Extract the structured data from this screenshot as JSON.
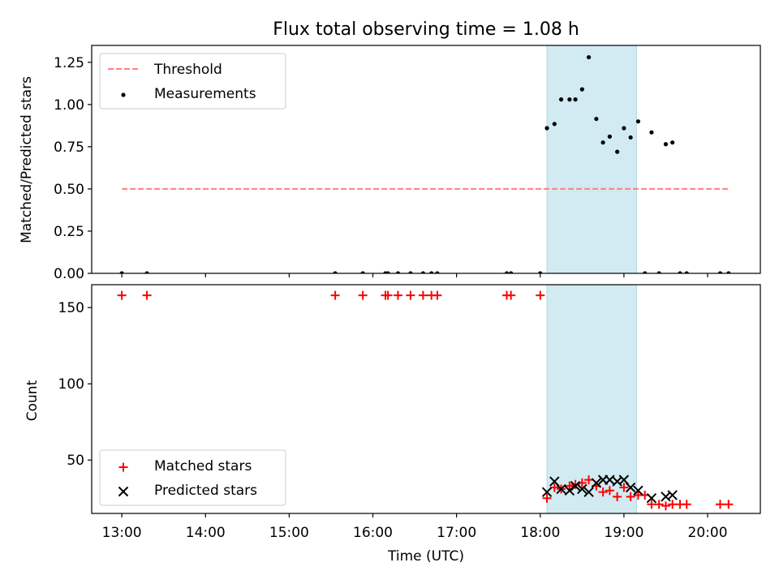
{
  "title": "Flux total observing time = 1.08 h",
  "chart_data": [
    {
      "type": "scatter",
      "ylabel": "Matched/Predicted stars",
      "xlim": [
        12.64,
        20.63
      ],
      "ylim": [
        0.0,
        1.35
      ],
      "yticks": [
        0.0,
        0.25,
        0.5,
        0.75,
        1.0,
        1.25
      ],
      "ytick_labels": [
        "0.00",
        "0.25",
        "0.50",
        "0.75",
        "1.00",
        "1.25"
      ],
      "shaded_region": {
        "x": [
          18.08,
          19.15
        ],
        "color": "#add8e6"
      },
      "legend_position": "upper-left",
      "series": [
        {
          "name": "Threshold",
          "kind": "line",
          "style": "dashed",
          "color": "#ff7f7f",
          "x": [
            13.0,
            20.25
          ],
          "y": [
            0.5,
            0.5
          ]
        },
        {
          "name": "Measurements",
          "kind": "scatter",
          "marker": "dot",
          "color": "#000000",
          "x": [
            13.0,
            13.3,
            15.55,
            15.88,
            16.15,
            16.18,
            16.3,
            16.45,
            16.6,
            16.7,
            16.77,
            17.6,
            17.65,
            18.0,
            18.08,
            18.17,
            18.25,
            18.35,
            18.42,
            18.5,
            18.58,
            18.67,
            18.75,
            18.83,
            18.92,
            19.0,
            19.08,
            19.17,
            19.25,
            19.33,
            19.42,
            19.5,
            19.58,
            19.67,
            19.75,
            20.15,
            20.25
          ],
          "y": [
            0.0,
            0.0,
            0.0,
            0.0,
            0.0,
            0.0,
            0.0,
            0.0,
            0.0,
            0.0,
            0.0,
            0.0,
            0.0,
            0.0,
            0.86,
            0.885,
            1.03,
            1.03,
            1.03,
            1.09,
            1.28,
            0.915,
            0.775,
            0.81,
            0.72,
            0.86,
            0.805,
            0.9,
            0.0,
            0.835,
            0.0,
            0.765,
            0.775,
            0.0,
            0.0,
            0.0,
            0.0
          ]
        }
      ]
    },
    {
      "type": "scatter",
      "xlabel": "Time (UTC)",
      "ylabel": "Count",
      "xlim": [
        12.64,
        20.63
      ],
      "ylim": [
        15,
        165
      ],
      "xticks": [
        13,
        14,
        15,
        16,
        17,
        18,
        19,
        20
      ],
      "xtick_labels": [
        "13:00",
        "14:00",
        "15:00",
        "16:00",
        "17:00",
        "18:00",
        "19:00",
        "20:00"
      ],
      "yticks": [
        50,
        100,
        150
      ],
      "ytick_labels": [
        "50",
        "100",
        "150"
      ],
      "shaded_region": {
        "x": [
          18.08,
          19.15
        ],
        "color": "#add8e6"
      },
      "legend_position": "lower-left",
      "series": [
        {
          "name": "Matched stars",
          "kind": "scatter",
          "marker": "plus",
          "color": "#ff0000",
          "x": [
            13.0,
            13.3,
            15.55,
            15.88,
            16.15,
            16.18,
            16.3,
            16.45,
            16.6,
            16.7,
            16.77,
            17.6,
            17.65,
            18.0,
            18.08,
            18.17,
            18.25,
            18.35,
            18.42,
            18.5,
            18.58,
            18.67,
            18.75,
            18.83,
            18.92,
            19.0,
            19.08,
            19.17,
            19.25,
            19.33,
            19.42,
            19.5,
            19.58,
            19.67,
            19.75,
            20.15,
            20.25
          ],
          "y": [
            158,
            158,
            158,
            158,
            158,
            158,
            158,
            158,
            158,
            158,
            158,
            158,
            158,
            158,
            25,
            32,
            31,
            33,
            34,
            35,
            37,
            33,
            29,
            30,
            26,
            32,
            26,
            27,
            27,
            21,
            21,
            20,
            21,
            21,
            21,
            21,
            21
          ]
        },
        {
          "name": "Predicted stars",
          "kind": "scatter",
          "marker": "x",
          "color": "#000000",
          "x": [
            18.08,
            18.17,
            18.25,
            18.35,
            18.42,
            18.5,
            18.58,
            18.67,
            18.75,
            18.83,
            18.92,
            19.0,
            19.08,
            19.17,
            19.33,
            19.5,
            19.58
          ],
          "y": [
            29,
            36,
            31,
            30,
            33,
            31,
            29,
            35,
            37,
            37,
            36,
            37,
            32,
            30,
            25,
            26,
            27
          ]
        }
      ]
    }
  ]
}
